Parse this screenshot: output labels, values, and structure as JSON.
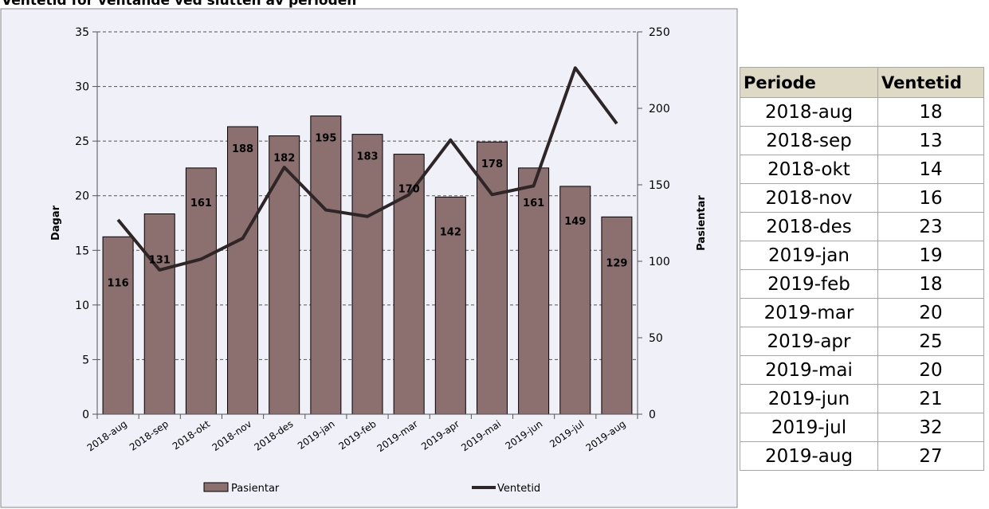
{
  "chart_data": {
    "type": "bar+line",
    "title": "Ventetid for ventande ved slutten av perioden",
    "categories": [
      "2018-aug",
      "2018-sep",
      "2018-okt",
      "2018-nov",
      "2018-des",
      "2019-jan",
      "2019-feb",
      "2019-mar",
      "2019-apr",
      "2019-mai",
      "2019-jun",
      "2019-jul",
      "2019-aug"
    ],
    "series": [
      {
        "name": "Pasientar",
        "type": "bar",
        "axis": "right",
        "color": "#8c7070",
        "values": [
          116,
          131,
          161,
          188,
          182,
          195,
          183,
          170,
          142,
          178,
          161,
          149,
          129
        ]
      },
      {
        "name": "Ventetid",
        "type": "line",
        "axis": "left",
        "color": "#2e2626",
        "values": [
          17.8,
          13.2,
          14.2,
          16.1,
          22.6,
          18.7,
          18.1,
          20.1,
          25.1,
          20.1,
          20.9,
          31.7,
          26.6
        ]
      }
    ],
    "ylabel_left": "Dagar",
    "ylabel_right": "Pasientar",
    "ylim_left": [
      0,
      35
    ],
    "ylim_right": [
      0,
      250
    ],
    "yticks_left": [
      0,
      5,
      10,
      15,
      20,
      25,
      30,
      35
    ],
    "yticks_right": [
      0,
      50,
      100,
      150,
      200,
      250
    ],
    "grid": true,
    "legend_position": "bottom"
  },
  "table": {
    "headers": [
      "Periode",
      "Ventetid"
    ],
    "rows": [
      [
        "2018-aug",
        "18"
      ],
      [
        "2018-sep",
        "13"
      ],
      [
        "2018-okt",
        "14"
      ],
      [
        "2018-nov",
        "16"
      ],
      [
        "2018-des",
        "23"
      ],
      [
        "2019-jan",
        "19"
      ],
      [
        "2019-feb",
        "18"
      ],
      [
        "2019-mar",
        "20"
      ],
      [
        "2019-apr",
        "25"
      ],
      [
        "2019-mai",
        "20"
      ],
      [
        "2019-jun",
        "21"
      ],
      [
        "2019-jul",
        "32"
      ],
      [
        "2019-aug",
        "27"
      ]
    ]
  }
}
